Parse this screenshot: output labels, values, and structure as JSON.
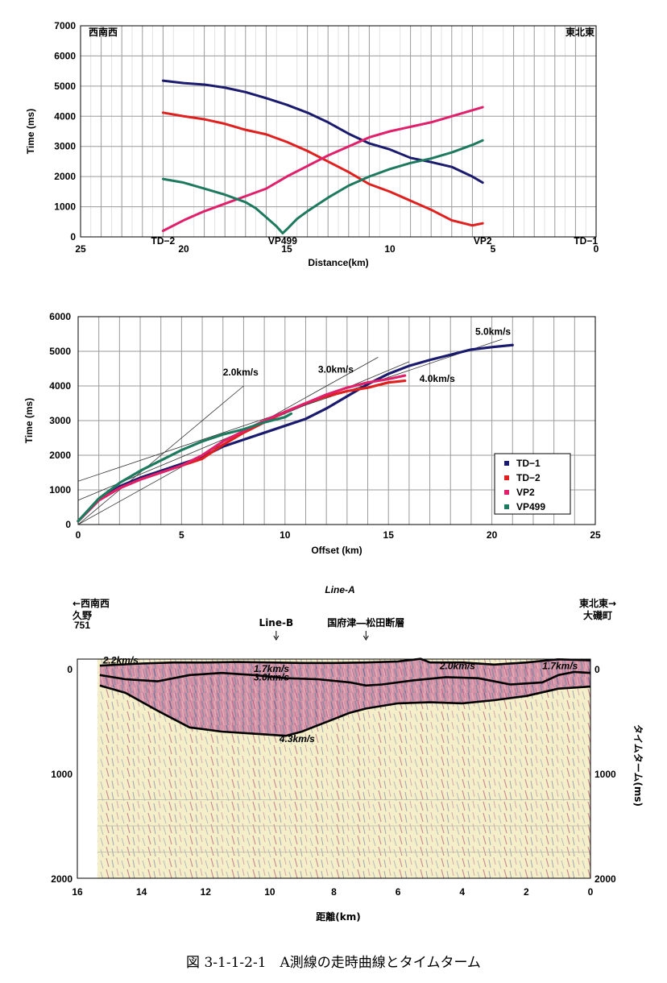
{
  "caption": "図 3-1-1-2-1　A測線の走時曲線とタイムターム",
  "colors": {
    "td1": "#1a1a6e",
    "td2": "#e0201e",
    "vp2": "#e0206a",
    "vp499": "#1e7a5e"
  },
  "chart_data": [
    {
      "type": "line",
      "xlabel": "Distance(km)",
      "ylabel": "Time (ms)",
      "xlim": [
        25,
        0
      ],
      "ylim": [
        0,
        7000
      ],
      "x_ticks": [
        25,
        20,
        15,
        10,
        5,
        0
      ],
      "y_ticks": [
        0,
        1000,
        2000,
        3000,
        4000,
        5000,
        6000,
        7000
      ],
      "corner_left": "西南西",
      "corner_right": "東北東",
      "stations": [
        {
          "name": "TD−2",
          "x": 21
        },
        {
          "name": "VP499",
          "x": 15.2
        },
        {
          "name": "VP2",
          "x": 5.5
        },
        {
          "name": "TD−1",
          "x": 0.5
        }
      ],
      "series": [
        {
          "key": "td1",
          "x": [
            21,
            20,
            19,
            18,
            17,
            16,
            15,
            14,
            13,
            12,
            11,
            10,
            9,
            8,
            7,
            6,
            5.5
          ],
          "y": [
            5180,
            5100,
            5050,
            4950,
            4800,
            4600,
            4380,
            4120,
            3800,
            3420,
            3100,
            2900,
            2620,
            2480,
            2320,
            2000,
            1800
          ]
        },
        {
          "key": "td2",
          "x": [
            21,
            20,
            19,
            18,
            17,
            16,
            15,
            14,
            13,
            12,
            11,
            10,
            9,
            8,
            7,
            6,
            5.5
          ],
          "y": [
            4120,
            4000,
            3900,
            3750,
            3550,
            3400,
            3150,
            2850,
            2500,
            2150,
            1750,
            1500,
            1200,
            900,
            550,
            380,
            450
          ]
        },
        {
          "key": "vp2",
          "x": [
            21,
            20,
            19,
            18,
            17,
            16,
            15,
            14,
            13,
            12,
            11,
            10,
            9,
            8,
            7,
            6,
            5.5
          ],
          "y": [
            200,
            550,
            850,
            1100,
            1350,
            1600,
            2000,
            2350,
            2700,
            3000,
            3300,
            3500,
            3650,
            3800,
            4000,
            4200,
            4300
          ]
        },
        {
          "key": "vp499",
          "x": [
            21,
            20,
            19,
            18,
            17,
            16.5,
            16,
            15.5,
            15.2,
            15,
            14.5,
            14,
            13,
            12,
            11,
            10,
            9,
            8,
            7,
            6,
            5.5
          ],
          "y": [
            1920,
            1800,
            1600,
            1400,
            1150,
            950,
            650,
            350,
            120,
            250,
            600,
            850,
            1300,
            1700,
            2000,
            2250,
            2450,
            2600,
            2800,
            3050,
            3200
          ]
        }
      ]
    },
    {
      "type": "scatter",
      "xlabel": "Offset (km)",
      "ylabel": "Time (ms)",
      "xlim": [
        0,
        25
      ],
      "ylim": [
        0,
        6000
      ],
      "x_ticks": [
        0,
        5,
        10,
        15,
        20,
        25
      ],
      "y_ticks": [
        0,
        1000,
        2000,
        3000,
        4000,
        5000,
        6000
      ],
      "legend_position": "bottom-right",
      "velocity_lines": [
        {
          "label": "2.0km/s",
          "intercept": 0,
          "slope": 500
        },
        {
          "label": "3.0km/s",
          "intercept": 0,
          "slope": 333
        },
        {
          "label": "4.0km/s",
          "intercept": 700,
          "slope": 250
        },
        {
          "label": "5.0km/s",
          "intercept": 1250,
          "slope": 200
        }
      ],
      "series": [
        {
          "name": "TD−1",
          "key": "td1",
          "x": [
            0,
            1,
            2,
            3,
            4,
            5,
            6,
            7,
            8,
            9,
            10,
            11,
            12,
            13,
            14,
            15,
            16,
            17,
            18,
            19,
            20,
            21
          ],
          "y": [
            100,
            700,
            1100,
            1350,
            1550,
            1750,
            1950,
            2250,
            2450,
            2650,
            2850,
            3050,
            3350,
            3700,
            4050,
            4350,
            4580,
            4750,
            4900,
            5050,
            5120,
            5180
          ]
        },
        {
          "name": "TD−2",
          "key": "td2",
          "x": [
            0,
            1,
            2,
            3,
            4,
            5,
            6,
            7,
            8,
            9,
            10,
            11,
            12,
            13,
            14,
            15,
            15.8
          ],
          "y": [
            100,
            700,
            1050,
            1300,
            1500,
            1700,
            1900,
            2300,
            2650,
            2950,
            3250,
            3500,
            3700,
            3850,
            3950,
            4100,
            4150
          ]
        },
        {
          "name": "VP2",
          "key": "vp2",
          "x": [
            0,
            1,
            2,
            3,
            4,
            5,
            6,
            7,
            8,
            9,
            10,
            11,
            12,
            13,
            14,
            15,
            15.8
          ],
          "y": [
            100,
            700,
            1050,
            1300,
            1500,
            1700,
            2000,
            2400,
            2700,
            3000,
            3250,
            3500,
            3750,
            3950,
            4100,
            4200,
            4300
          ]
        },
        {
          "name": "VP499",
          "key": "vp499",
          "x": [
            0,
            1,
            2,
            3,
            4,
            5,
            6,
            7,
            8,
            9,
            10,
            10.3
          ],
          "y": [
            100,
            750,
            1200,
            1550,
            1850,
            2150,
            2400,
            2600,
            2750,
            2950,
            3100,
            3200
          ]
        }
      ]
    },
    {
      "type": "line",
      "title": "Line-A",
      "xlabel": "距離(km)",
      "ylabel": "タイムターム(ms)",
      "xlim": [
        16,
        0
      ],
      "ylim": [
        2000,
        0
      ],
      "x_ticks": [
        16,
        14,
        12,
        10,
        8,
        6,
        4,
        2,
        0
      ],
      "y_ticks": [
        0,
        1000,
        2000
      ],
      "left_labels": [
        "←西南西",
        "久野",
        "751"
      ],
      "right_labels": [
        "東北東→",
        "大磯町"
      ],
      "markers": [
        {
          "label": "Line-B",
          "x": 9.8
        },
        {
          "label": "国府津―松田断層",
          "x": 7.0
        }
      ],
      "velocity_labels": [
        "2.2km/s",
        "1.7km/s",
        "3.0km/s",
        "2.0km/s",
        "1.7km/s",
        "4.3km/s"
      ],
      "horizons": [
        {
          "x": [
            15.3,
            14,
            13,
            12,
            11,
            10,
            9,
            8,
            7,
            6,
            5.3,
            5,
            4,
            3,
            2,
            1,
            0
          ],
          "y": [
            -30,
            -50,
            -60,
            -60,
            -65,
            -60,
            -55,
            -55,
            -60,
            -70,
            -95,
            -60,
            -60,
            -40,
            -60,
            -90,
            -80
          ]
        },
        {
          "x": [
            15.3,
            14.5,
            13.5,
            12.5,
            11.5,
            10.5,
            9.5,
            8.5,
            7.5,
            7,
            6.5,
            5.5,
            4.5,
            3.5,
            2.5,
            1.5,
            1,
            0.5,
            0
          ],
          "y": [
            60,
            100,
            120,
            60,
            40,
            60,
            90,
            100,
            130,
            160,
            150,
            110,
            80,
            90,
            150,
            130,
            60,
            30,
            40
          ]
        },
        {
          "x": [
            15.3,
            14.5,
            13.5,
            12.5,
            11.5,
            10.5,
            9.5,
            9,
            8.5,
            8,
            7.5,
            7,
            6,
            5,
            4,
            3,
            2,
            1,
            0
          ],
          "y": [
            160,
            230,
            400,
            560,
            600,
            620,
            640,
            600,
            540,
            480,
            420,
            380,
            330,
            320,
            330,
            300,
            260,
            190,
            170
          ]
        }
      ]
    }
  ]
}
